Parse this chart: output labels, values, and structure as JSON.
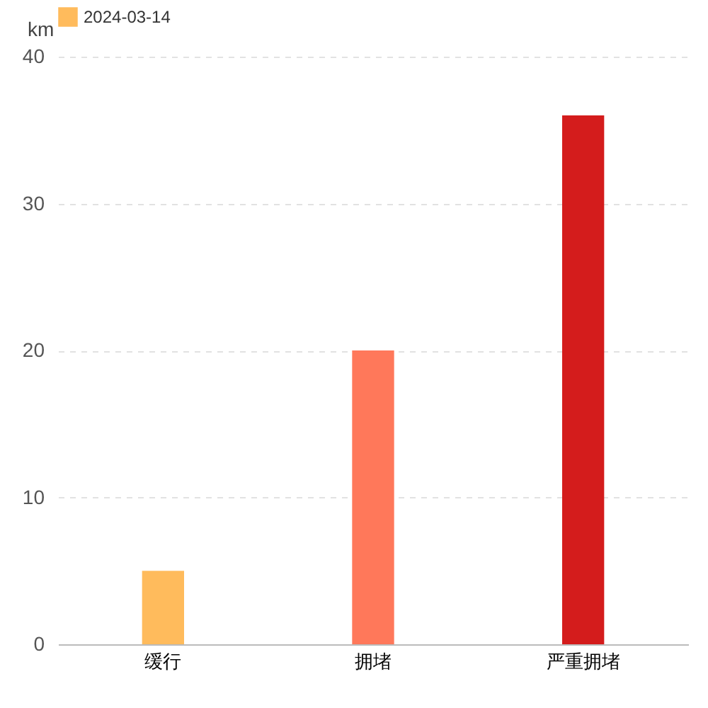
{
  "chart_data": {
    "type": "bar",
    "categories": [
      "缓行",
      "拥堵",
      "严重拥堵"
    ],
    "ylabel": "km",
    "series": [
      {
        "name": "2024-03-14",
        "color": "#ffbb5c",
        "colors": [
          "#ffbb5c",
          "#ff785a",
          "#d41c1c"
        ],
        "values": [
          5,
          20,
          36
        ]
      }
    ],
    "ylim": [
      0,
      40
    ],
    "yticks": [
      0,
      10,
      20,
      30,
      40
    ],
    "grid": "y",
    "legend": "top"
  }
}
